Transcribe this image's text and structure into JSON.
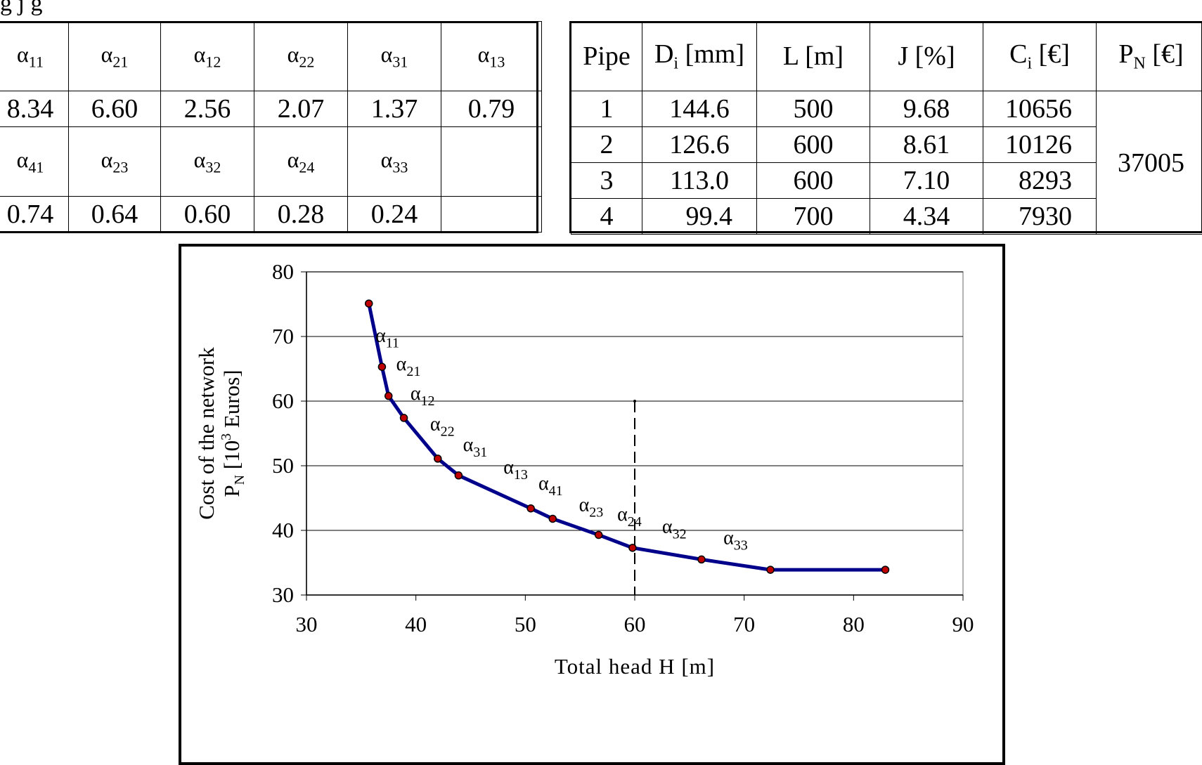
{
  "caption_fragment": "g          j        g",
  "alpha_table": {
    "header_row_1": [
      "α11",
      "α21",
      "α12",
      "α22",
      "α31",
      "α13"
    ],
    "value_row_1": [
      "8.34",
      "6.60",
      "2.56",
      "2.07",
      "1.37",
      "0.79"
    ],
    "header_row_2": [
      "α41",
      "α23",
      "α32",
      "α24",
      "α33",
      ""
    ],
    "value_row_2": [
      "0.74",
      "0.64",
      "0.60",
      "0.28",
      "0.24",
      ""
    ]
  },
  "pipe_table": {
    "headers": [
      "Pipe",
      "Di [mm]",
      "L  [m]",
      "J  [%]",
      "Ci  [€]",
      "PN  [€]"
    ],
    "rows": [
      [
        "1",
        "144.6",
        "500",
        "9.68",
        "10656"
      ],
      [
        "2",
        "126.6",
        "600",
        "8.61",
        "10126"
      ],
      [
        "3",
        "113.0",
        "600",
        "7.10",
        "8293"
      ],
      [
        "4",
        "99.4",
        "700",
        "4.34",
        "7930"
      ]
    ],
    "total": "37005"
  },
  "chart_data": {
    "type": "line",
    "title": "",
    "xlabel": "Total  head   H   [m]",
    "ylabel_line1": "Cost of the network",
    "ylabel_line2": "P",
    "ylabel_line2_sub": "N",
    "ylabel_line2_rest": "  [10",
    "ylabel_line2_sup": "3",
    "ylabel_line2_end": " Euros]",
    "xlim": [
      30,
      90
    ],
    "ylim": [
      30,
      80
    ],
    "xticks": [
      "30",
      "40",
      "50",
      "60",
      "70",
      "80",
      "90"
    ],
    "yticks": [
      "30",
      "40",
      "50",
      "60",
      "70",
      "80"
    ],
    "grid": "horizontal",
    "series": [
      {
        "x": [
          35.7,
          36.9,
          37.5,
          38.9,
          42.0,
          43.9,
          50.5,
          52.5,
          56.7,
          59.8,
          66.1,
          72.4,
          82.9
        ],
        "y": [
          75.1,
          65.3,
          60.8,
          57.4,
          51.1,
          48.5,
          43.4,
          41.8,
          39.3,
          37.3,
          35.5,
          33.9,
          33.9
        ]
      }
    ],
    "reference_line_x": 60,
    "reference_line_top": 60,
    "annotations": [
      {
        "base": "α",
        "sub": "11",
        "x": 36.3,
        "y": 69.2
      },
      {
        "base": "α",
        "sub": "21",
        "x": 38.2,
        "y": 64.8
      },
      {
        "base": "α",
        "sub": "12",
        "x": 39.5,
        "y": 60.2
      },
      {
        "base": "α",
        "sub": "22",
        "x": 41.3,
        "y": 55.5
      },
      {
        "base": "α",
        "sub": "31",
        "x": 44.3,
        "y": 52.3
      },
      {
        "base": "α",
        "sub": "13",
        "x": 48.0,
        "y": 48.8
      },
      {
        "base": "α",
        "sub": "41",
        "x": 51.2,
        "y": 46.3
      },
      {
        "base": "α",
        "sub": "23",
        "x": 54.9,
        "y": 43.0
      },
      {
        "base": "α",
        "sub": "24",
        "x": 58.4,
        "y": 41.5
      },
      {
        "base": "α",
        "sub": "32",
        "x": 62.5,
        "y": 39.6
      },
      {
        "base": "α",
        "sub": "33",
        "x": 68.1,
        "y": 37.9
      }
    ],
    "colors": {
      "line": "#00008b",
      "marker": "#c00000",
      "grid": "#000000"
    }
  }
}
